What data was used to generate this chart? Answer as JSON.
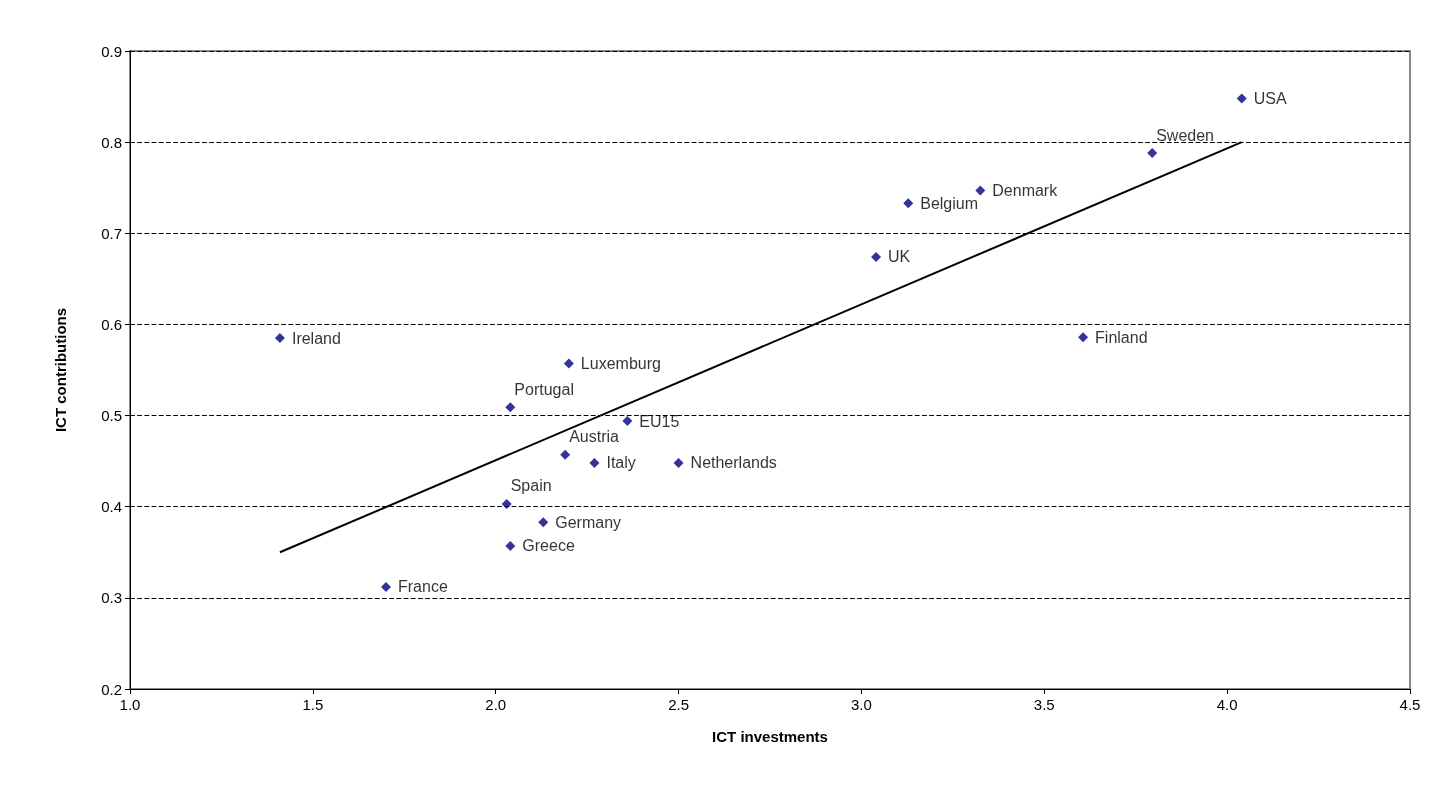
{
  "chart_data": {
    "type": "scatter",
    "xlabel": "ICT investments",
    "ylabel": "ICT contributions",
    "xlim": [
      1.0,
      4.5
    ],
    "xticks": [
      {
        "value": 1,
        "label": "1.0"
      },
      {
        "value": 1.5,
        "label": "1.5"
      },
      {
        "value": 2,
        "label": "2.0"
      },
      {
        "value": 2.5,
        "label": "2.5"
      },
      {
        "value": 3,
        "label": "3.0"
      },
      {
        "value": 3.5,
        "label": "3.5"
      },
      {
        "value": 4,
        "label": "4.0"
      },
      {
        "value": 4.5,
        "label": "4.5"
      }
    ],
    "ylim": [
      0.2,
      0.9
    ],
    "yticks": [
      0.2,
      0.3,
      0.4,
      0.5,
      0.6,
      0.7,
      0.8,
      0.9
    ],
    "grid": "y",
    "marker": "diamond",
    "series": [
      {
        "color": "#000080",
        "x": [
          4.04,
          3.795,
          3.325,
          3.128,
          3.04,
          3.606,
          1.41,
          2.2,
          2.04,
          2.36,
          2.19,
          2.27,
          2.5,
          2.03,
          2.13,
          2.04,
          1.7
        ],
        "values": [
          0.848,
          0.788,
          0.747,
          0.733,
          0.674,
          0.586,
          0.585,
          0.557,
          0.509,
          0.494,
          0.457,
          0.448,
          0.448,
          0.403,
          0.383,
          0.357,
          0.312
        ]
      },
      {
        "type": "line",
        "color": "#000000",
        "x": [
          1.41,
          4.04
        ],
        "values": [
          0.35,
          0.8
        ],
        "marker": "none"
      }
    ],
    "annotations": [
      {
        "text": "USA",
        "x": 4.04,
        "y": 0.848
      },
      {
        "text": "Sweden",
        "x": 3.795,
        "y": 0.788
      },
      {
        "text": "Denmark",
        "x": 3.325,
        "y": 0.747
      },
      {
        "text": "Belgium",
        "x": 3.128,
        "y": 0.733
      },
      {
        "text": "UK",
        "x": 3.04,
        "y": 0.674
      },
      {
        "text": "Finland",
        "x": 3.606,
        "y": 0.586
      },
      {
        "text": "Ireland",
        "x": 1.41,
        "y": 0.585
      },
      {
        "text": "Luxemburg",
        "x": 2.2,
        "y": 0.557
      },
      {
        "text": "Portugal",
        "x": 2.04,
        "y": 0.509
      },
      {
        "text": "EU15",
        "x": 2.36,
        "y": 0.494
      },
      {
        "text": "Austria",
        "x": 2.19,
        "y": 0.457
      },
      {
        "text": "Italy",
        "x": 2.27,
        "y": 0.448
      },
      {
        "text": "Netherlands",
        "x": 2.5,
        "y": 0.448
      },
      {
        "text": "Spain",
        "x": 2.03,
        "y": 0.403
      },
      {
        "text": "Germany",
        "x": 2.13,
        "y": 0.383
      },
      {
        "text": "Greece",
        "x": 2.04,
        "y": 0.357
      },
      {
        "text": "France",
        "x": 1.7,
        "y": 0.312
      }
    ]
  }
}
